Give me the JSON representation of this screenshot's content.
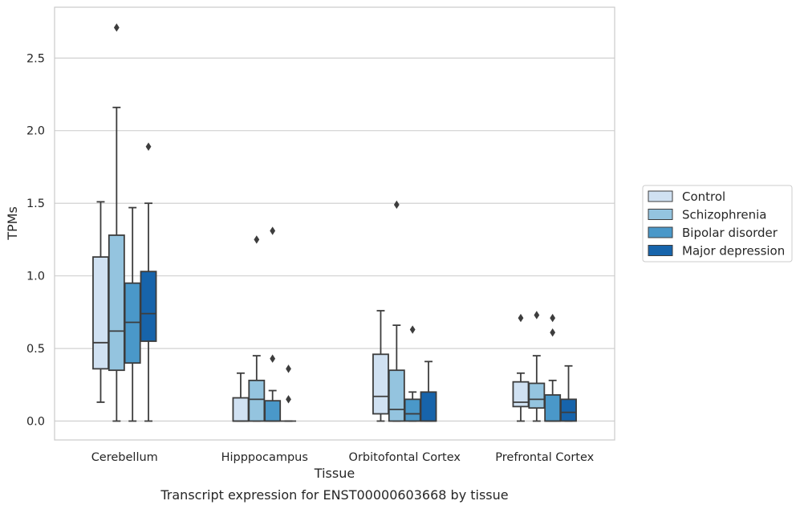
{
  "chart_data": {
    "type": "boxplot",
    "xlabel": "Tissue",
    "ylabel": "TPMs",
    "caption": "Transcript expression for ENST00000603668 by tissue",
    "ylim": [
      -0.13,
      2.85
    ],
    "yticks": [
      "0.0",
      "0.5",
      "1.0",
      "1.5",
      "2.0",
      "2.5"
    ],
    "ytick_values": [
      0,
      0.5,
      1.0,
      1.5,
      2.0,
      2.5
    ],
    "grid": "horizontal",
    "legend_position": "right",
    "categories": [
      "Cerebellum",
      "Hipppocampus",
      "Orbitofontal Cortex",
      "Prefrontal Cortex"
    ],
    "series": [
      {
        "name": "Control",
        "color": "#d0e1f2",
        "boxes": [
          {
            "whislo": 0.13,
            "q1": 0.36,
            "med": 0.54,
            "q3": 1.13,
            "whishi": 1.51,
            "fliers": []
          },
          {
            "whislo": 0.0,
            "q1": 0.0,
            "med": 0.0,
            "q3": 0.16,
            "whishi": 0.33,
            "fliers": []
          },
          {
            "whislo": 0.0,
            "q1": 0.05,
            "med": 0.17,
            "q3": 0.46,
            "whishi": 0.76,
            "fliers": []
          },
          {
            "whislo": 0.0,
            "q1": 0.1,
            "med": 0.13,
            "q3": 0.27,
            "whishi": 0.33,
            "fliers": [
              0.71
            ]
          }
        ]
      },
      {
        "name": "Schizophrenia",
        "color": "#94c4df",
        "boxes": [
          {
            "whislo": 0.0,
            "q1": 0.35,
            "med": 0.62,
            "q3": 1.28,
            "whishi": 2.16,
            "fliers": [
              2.71
            ]
          },
          {
            "whislo": 0.0,
            "q1": 0.0,
            "med": 0.15,
            "q3": 0.28,
            "whishi": 0.45,
            "fliers": [
              1.25
            ]
          },
          {
            "whislo": 0.0,
            "q1": 0.0,
            "med": 0.08,
            "q3": 0.35,
            "whishi": 0.66,
            "fliers": [
              1.49
            ]
          },
          {
            "whislo": 0.0,
            "q1": 0.09,
            "med": 0.15,
            "q3": 0.26,
            "whishi": 0.45,
            "fliers": [
              0.73
            ]
          }
        ]
      },
      {
        "name": "Bipolar disorder",
        "color": "#4a98c9",
        "boxes": [
          {
            "whislo": 0.0,
            "q1": 0.4,
            "med": 0.68,
            "q3": 0.95,
            "whishi": 1.47,
            "fliers": []
          },
          {
            "whislo": 0.0,
            "q1": 0.0,
            "med": 0.0,
            "q3": 0.14,
            "whishi": 0.21,
            "fliers": [
              1.31,
              0.43
            ]
          },
          {
            "whislo": 0.0,
            "q1": 0.0,
            "med": 0.05,
            "q3": 0.15,
            "whishi": 0.2,
            "fliers": [
              0.63
            ]
          },
          {
            "whislo": 0.0,
            "q1": 0.0,
            "med": 0.0,
            "q3": 0.18,
            "whishi": 0.28,
            "fliers": [
              0.71,
              0.61
            ]
          }
        ]
      },
      {
        "name": "Major depression",
        "color": "#1764ab",
        "boxes": [
          {
            "whislo": 0.0,
            "q1": 0.55,
            "med": 0.74,
            "q3": 1.03,
            "whishi": 1.5,
            "fliers": [
              1.89
            ]
          },
          {
            "whislo": 0.0,
            "q1": 0.0,
            "med": 0.0,
            "q3": 0.0,
            "whishi": 0.0,
            "fliers": [
              0.36,
              0.15
            ]
          },
          {
            "whislo": 0.0,
            "q1": 0.0,
            "med": 0.0,
            "q3": 0.2,
            "whishi": 0.41,
            "fliers": []
          },
          {
            "whislo": 0.0,
            "q1": 0.0,
            "med": 0.06,
            "q3": 0.15,
            "whishi": 0.38,
            "fliers": []
          }
        ]
      }
    ]
  }
}
